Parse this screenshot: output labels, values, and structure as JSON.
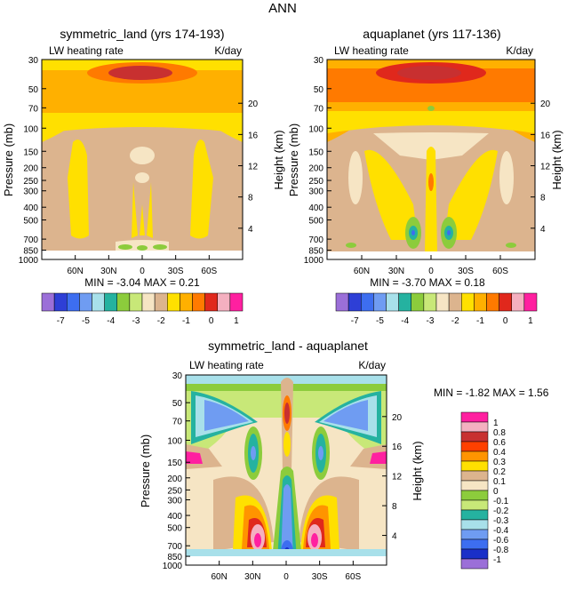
{
  "page_title": "ANN",
  "chart_data": [
    {
      "type": "heatmap",
      "title": "symmetric_land (yrs 174-193)",
      "left_label": "LW heating rate",
      "right_label": "K/day",
      "ylabel": "Pressure (mb)",
      "y2label": "Height (km)",
      "yticks": [
        "30",
        "50",
        "70",
        "100",
        "150",
        "200",
        "250",
        "300",
        "400",
        "500",
        "700",
        "850",
        "1000"
      ],
      "y2ticks": [
        "20",
        "16",
        "12",
        "8",
        "4"
      ],
      "xticks": [
        "60N",
        "30N",
        "0",
        "30S",
        "60S"
      ],
      "stats_text": "MIN = -3.04   MAX =  0.21",
      "colorbar": {
        "levels": [
          "-7",
          "-5",
          "-4",
          "-3",
          "-2",
          "-1",
          "0",
          "1"
        ],
        "colors": [
          "#9b6fd8",
          "#2e3fd6",
          "#3d6ef0",
          "#6f9cf2",
          "#a8e0ea",
          "#25b2a0",
          "#8ccc3c",
          "#c8e878",
          "#f6e5c4",
          "#dcb48e",
          "#ffe000",
          "#ffb000",
          "#ff7a00",
          "#e0281c",
          "#f4b0c0",
          "#ff20a0"
        ]
      }
    },
    {
      "type": "heatmap",
      "title": "aquaplanet (yrs 117-136)",
      "left_label": "LW heating rate",
      "right_label": "K/day",
      "ylabel": "Pressure (mb)",
      "y2label": "Height (km)",
      "yticks": [
        "30",
        "50",
        "70",
        "100",
        "150",
        "200",
        "250",
        "300",
        "400",
        "500",
        "700",
        "850",
        "1000"
      ],
      "y2ticks": [
        "20",
        "16",
        "12",
        "8",
        "4"
      ],
      "xticks": [
        "60N",
        "30N",
        "0",
        "30S",
        "60S"
      ],
      "stats_text": "MIN = -3.70   MAX =  0.18",
      "colorbar": {
        "levels": [
          "-7",
          "-5",
          "-4",
          "-3",
          "-2",
          "-1",
          "0",
          "1"
        ],
        "colors": [
          "#9b6fd8",
          "#2e3fd6",
          "#3d6ef0",
          "#6f9cf2",
          "#a8e0ea",
          "#25b2a0",
          "#8ccc3c",
          "#c8e878",
          "#f6e5c4",
          "#dcb48e",
          "#ffe000",
          "#ffb000",
          "#ff7a00",
          "#e0281c",
          "#f4b0c0",
          "#ff20a0"
        ]
      }
    },
    {
      "type": "heatmap",
      "title": "symmetric_land - aquaplanet",
      "left_label": "LW heating rate",
      "right_label": "K/day",
      "ylabel": "Pressure (mb)",
      "y2label": "Height (km)",
      "yticks": [
        "30",
        "50",
        "70",
        "100",
        "150",
        "200",
        "250",
        "300",
        "400",
        "500",
        "700",
        "850",
        "1000"
      ],
      "y2ticks": [
        "20",
        "16",
        "12",
        "8",
        "4"
      ],
      "xticks": [
        "60N",
        "30N",
        "0",
        "30S",
        "60S"
      ],
      "stats_text": "MIN = -1.82   MAX =   1.56",
      "colorbar": {
        "levels": [
          "1",
          "0.8",
          "0.6",
          "0.4",
          "0.3",
          "0.2",
          "0.1",
          "0",
          "-0.1",
          "-0.2",
          "-0.3",
          "-0.4",
          "-0.6",
          "-0.8",
          "-1"
        ],
        "colors": [
          "#ff20a0",
          "#f4b0c0",
          "#c83030",
          "#ff4000",
          "#ff9400",
          "#ffe000",
          "#dcb48e",
          "#f6e5c4",
          "#8ccc3c",
          "#c8e878",
          "#25b2a0",
          "#a8e0ea",
          "#6f9cf2",
          "#3d6ef0",
          "#1a2fc8",
          "#9b6fd8"
        ]
      }
    }
  ]
}
